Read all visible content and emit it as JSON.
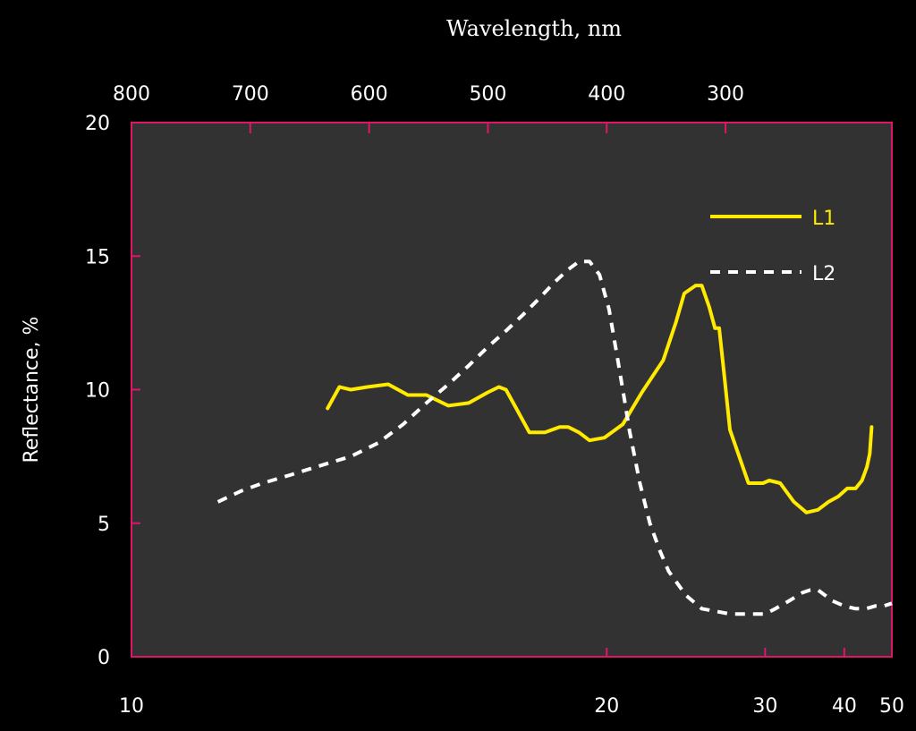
{
  "chart_data": {
    "type": "line",
    "title": "Wavelength, nm",
    "xlabel": "",
    "ylabel": "Reflectance, %",
    "xlim": [
      10,
      50
    ],
    "ylim": [
      0,
      20
    ],
    "x_scale": "reciprocal",
    "xticks": [
      10,
      20,
      30,
      40,
      50
    ],
    "yticks": [
      0,
      5,
      10,
      15,
      20
    ],
    "top_axis": {
      "label": "Wavelength, nm",
      "ticks": [
        800,
        700,
        600,
        500,
        400,
        300
      ]
    },
    "grid": false,
    "legend": "top-right",
    "colors": {
      "background": "#000000",
      "plot_area": "#323232",
      "frame": "#e0156a",
      "L1": "#ffea00",
      "L2": "#ffffff"
    },
    "series": [
      {
        "name": "L1",
        "style": "solid",
        "x": [
          12.6,
          12.8,
          13.0,
          13.3,
          13.7,
          14.1,
          14.5,
          15.0,
          15.5,
          16.0,
          16.3,
          16.5,
          16.8,
          17.2,
          17.7,
          18.2,
          18.5,
          18.9,
          19.3,
          19.9,
          20.7,
          21.6,
          22.7,
          23.4,
          23.9,
          24.6,
          25.0,
          25.5,
          25.9,
          26.2,
          26.6,
          27.0,
          28.5,
          29.8,
          30.4,
          31.5,
          33.0,
          34.5,
          36.0,
          37.5,
          39.0,
          40.5,
          42.0,
          43.2,
          44.2,
          44.8,
          45.2
        ],
        "y": [
          9.3,
          10.1,
          10.0,
          10.1,
          10.2,
          9.8,
          9.8,
          9.4,
          9.5,
          9.9,
          10.1,
          10.0,
          9.3,
          8.4,
          8.4,
          8.6,
          8.6,
          8.4,
          8.1,
          8.2,
          8.7,
          9.9,
          11.1,
          12.5,
          13.6,
          13.9,
          13.9,
          13.1,
          12.3,
          12.3,
          10.4,
          8.5,
          6.5,
          6.5,
          6.6,
          6.5,
          5.8,
          5.4,
          5.5,
          5.8,
          6.0,
          6.3,
          6.3,
          6.6,
          7.1,
          7.6,
          8.6
        ]
      },
      {
        "name": "L2",
        "style": "dashed",
        "x": [
          11.0,
          11.3,
          11.6,
          12.0,
          12.4,
          13.0,
          13.5,
          14.0,
          14.5,
          15.0,
          15.5,
          16.0,
          16.5,
          17.0,
          17.5,
          18.0,
          18.5,
          18.9,
          19.3,
          19.7,
          20.1,
          20.5,
          20.8,
          21.0,
          21.5,
          22.0,
          22.5,
          23.0,
          24.0,
          25.0,
          27.0,
          30.0,
          31.0,
          32.5,
          34.0,
          35.0,
          36.0,
          37.0,
          38.0,
          40.0,
          42.0,
          44.0,
          46.0,
          48.0,
          50.0
        ],
        "y": [
          5.8,
          6.2,
          6.5,
          6.8,
          7.1,
          7.5,
          8.0,
          8.7,
          9.5,
          10.2,
          10.9,
          11.6,
          12.2,
          12.8,
          13.4,
          14.0,
          14.5,
          14.8,
          14.8,
          14.3,
          13.0,
          11.0,
          9.5,
          8.5,
          6.5,
          5.0,
          4.0,
          3.2,
          2.3,
          1.8,
          1.6,
          1.6,
          1.8,
          2.1,
          2.4,
          2.5,
          2.5,
          2.3,
          2.1,
          1.9,
          1.8,
          1.8,
          1.9,
          1.9,
          2.0
        ]
      }
    ]
  }
}
